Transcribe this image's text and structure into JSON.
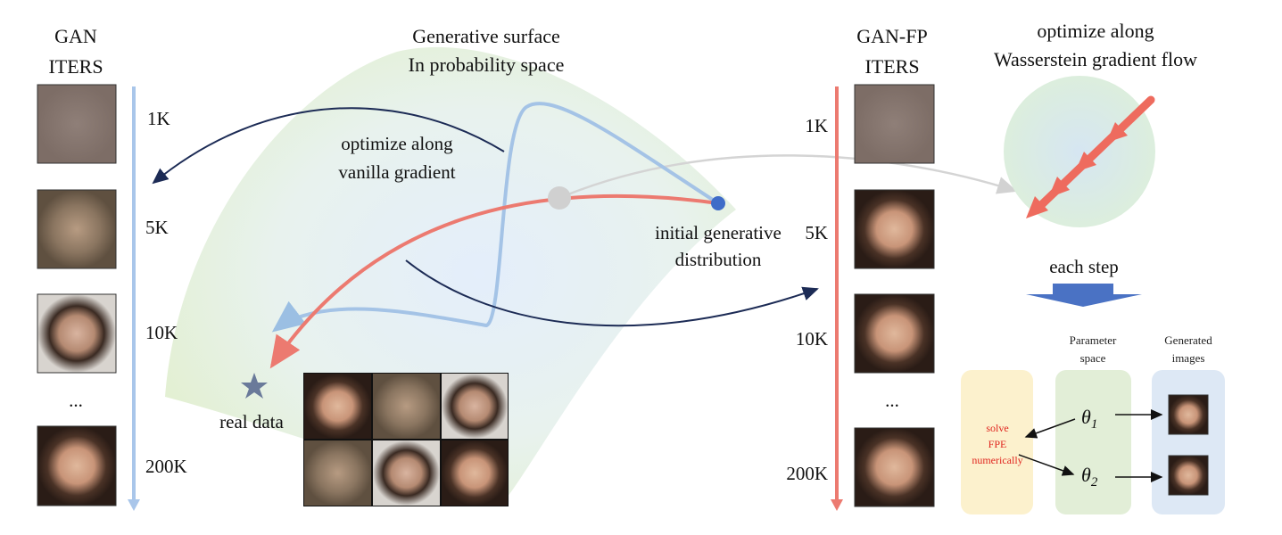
{
  "gan_column": {
    "title": [
      "GAN",
      "ITERS"
    ],
    "iters": [
      "1K",
      "5K",
      "10K",
      "...",
      "200K"
    ]
  },
  "surface": {
    "title": [
      "Generative surface",
      "In probability space"
    ],
    "vanilla_label": [
      "optimize along",
      "vanilla gradient"
    ],
    "initial_label": [
      "initial generative",
      "distribution"
    ],
    "real_data_label": "real data"
  },
  "ganfp_column": {
    "title": [
      "GAN-FP",
      "ITERS"
    ],
    "iters": [
      "1K",
      "5K",
      "10K",
      "...",
      "200K"
    ]
  },
  "flow": {
    "title": [
      "optimize along",
      "Wasserstein gradient flow"
    ],
    "step_label": "each step",
    "parameter_space": [
      "Parameter",
      "space"
    ],
    "generated_images": [
      "Generated",
      "images"
    ],
    "solver": [
      "solve",
      "FPE",
      "numerically"
    ],
    "thetas": [
      {
        "symbol": "θ",
        "subscript": "1"
      },
      {
        "symbol": "θ",
        "subscript": "2"
      }
    ]
  }
}
